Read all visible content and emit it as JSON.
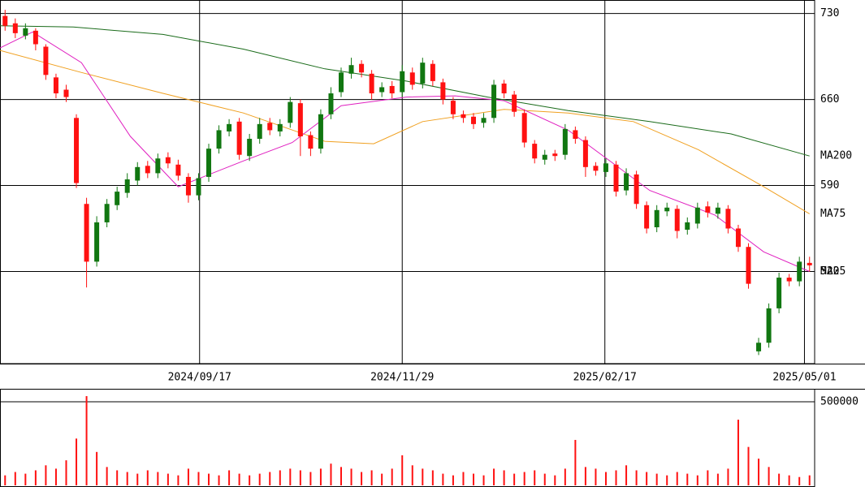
{
  "chart_data": [
    {
      "type": "candlestick",
      "xlim": [
        -0.5,
        79.5
      ],
      "xticks": [
        {
          "value": 19.1,
          "label": "2024/09/17"
        },
        {
          "value": 39,
          "label": "2024/11/29"
        },
        {
          "value": 58.9,
          "label": "2025/02/17"
        },
        {
          "value": 78.5,
          "label": "2025/05/01"
        }
      ],
      "ylim": [
        445,
        741
      ],
      "yticks": [
        520,
        590,
        660,
        730
      ],
      "grid": true,
      "up_color": "#117711",
      "down_color": "#ff1111",
      "open": [
        728,
        722,
        712,
        716,
        703,
        678,
        668,
        645,
        575,
        528,
        560,
        574,
        584,
        594,
        606,
        600,
        613,
        607,
        597,
        582,
        597,
        620,
        634,
        642,
        614,
        628,
        641,
        634,
        641,
        657,
        631,
        620,
        648,
        666,
        681,
        689,
        681,
        666,
        671,
        666,
        682,
        673,
        689,
        674,
        659,
        648,
        646,
        641,
        645,
        673,
        664,
        649,
        624,
        611,
        616,
        615,
        635,
        627,
        606,
        601,
        607,
        586,
        599,
        574,
        556,
        569,
        571,
        554,
        559,
        573,
        567,
        571,
        555,
        540,
        455,
        462,
        490,
        515,
        512,
        527
      ],
      "high": [
        733,
        726,
        722,
        718,
        705,
        681,
        672,
        648,
        580,
        565,
        579,
        589,
        600,
        609,
        610,
        616,
        617,
        611,
        600,
        600,
        624,
        639,
        644,
        645,
        632,
        645,
        645,
        644,
        662,
        660,
        634,
        652,
        670,
        686,
        694,
        692,
        684,
        674,
        675,
        688,
        686,
        694,
        692,
        677,
        662,
        651,
        649,
        649,
        676,
        676,
        667,
        652,
        627,
        619,
        619,
        640,
        638,
        630,
        609,
        612,
        610,
        604,
        602,
        577,
        574,
        576,
        574,
        564,
        576,
        577,
        576,
        574,
        558,
        543,
        466,
        494,
        519,
        518,
        532,
        532
      ],
      "low": [
        716,
        710,
        709,
        700,
        676,
        661,
        658,
        588,
        507,
        524,
        556,
        570,
        580,
        590,
        596,
        596,
        604,
        594,
        576,
        578,
        593,
        616,
        630,
        611,
        610,
        624,
        631,
        630,
        637,
        614,
        614,
        616,
        644,
        662,
        677,
        678,
        660,
        662,
        661,
        662,
        668,
        669,
        671,
        656,
        644,
        641,
        636,
        637,
        641,
        661,
        646,
        621,
        608,
        607,
        610,
        611,
        624,
        597,
        598,
        597,
        581,
        582,
        571,
        551,
        552,
        565,
        547,
        550,
        555,
        564,
        563,
        551,
        536,
        506,
        452,
        458,
        486,
        508,
        508,
        520
      ],
      "close": [
        720,
        714,
        718,
        705,
        680,
        665,
        662,
        592,
        528,
        560,
        575,
        585,
        595,
        605,
        600,
        612,
        608,
        598,
        582,
        596,
        620,
        635,
        640,
        615,
        628,
        640,
        635,
        640,
        658,
        630,
        620,
        648,
        665,
        682,
        688,
        682,
        665,
        670,
        665,
        683,
        672,
        690,
        675,
        660,
        648,
        645,
        640,
        645,
        672,
        665,
        650,
        625,
        612,
        615,
        614,
        636,
        628,
        605,
        602,
        608,
        585,
        600,
        575,
        555,
        570,
        572,
        553,
        560,
        572,
        568,
        572,
        555,
        540,
        510,
        462,
        490,
        515,
        512,
        528,
        525
      ],
      "series": [
        {
          "name": "MA200",
          "color": "#1a6b1a",
          "x": [
            -0.5,
            6.7,
            15.5,
            23.4,
            31.4,
            39.4,
            47.4,
            55.3,
            63.3,
            71.3,
            79
          ],
          "values": [
            720,
            719,
            713,
            701,
            685,
            675,
            662,
            651,
            642,
            632,
            614
          ]
        },
        {
          "name": "MA75",
          "color": "#f0a020",
          "x": [
            -0.5,
            7.5,
            15.5,
            23.4,
            31.4,
            36.2,
            41,
            49,
            55.3,
            61.7,
            68.1,
            74.5,
            79
          ],
          "values": [
            700,
            682,
            665,
            649,
            626,
            624,
            642,
            652,
            649,
            642,
            619,
            589,
            567
          ]
        },
        {
          "name": "MA25",
          "color": "#e020c0",
          "x": [
            -0.5,
            2.7,
            7.5,
            12.3,
            17,
            23.4,
            28.2,
            33,
            39.4,
            44.2,
            49,
            55.3,
            63.3,
            69.7,
            74.5,
            79
          ],
          "values": [
            702,
            715,
            690,
            630,
            589,
            610,
            625,
            655,
            662,
            663,
            659,
            635,
            586,
            566,
            536,
            520
          ]
        }
      ]
    },
    {
      "type": "bar",
      "xlim": [
        -0.5,
        79.5
      ],
      "ylim": [
        0,
        573000
      ],
      "yticks": [
        500000
      ],
      "color": "#ff1111",
      "values": [
        60000,
        80000,
        70000,
        90000,
        120000,
        100000,
        150000,
        280000,
        534000,
        200000,
        110000,
        90000,
        80000,
        70000,
        90000,
        80000,
        70000,
        60000,
        100000,
        80000,
        70000,
        60000,
        90000,
        70000,
        60000,
        70000,
        80000,
        90000,
        100000,
        90000,
        80000,
        100000,
        130000,
        110000,
        100000,
        80000,
        90000,
        70000,
        100000,
        180000,
        120000,
        100000,
        90000,
        70000,
        60000,
        80000,
        70000,
        60000,
        100000,
        90000,
        70000,
        80000,
        90000,
        70000,
        60000,
        100000,
        272000,
        110000,
        100000,
        80000,
        90000,
        120000,
        90000,
        80000,
        70000,
        60000,
        80000,
        70000,
        60000,
        90000,
        70000,
        100000,
        393000,
        230000,
        160000,
        110000,
        70000,
        60000,
        50000,
        60000
      ]
    }
  ]
}
